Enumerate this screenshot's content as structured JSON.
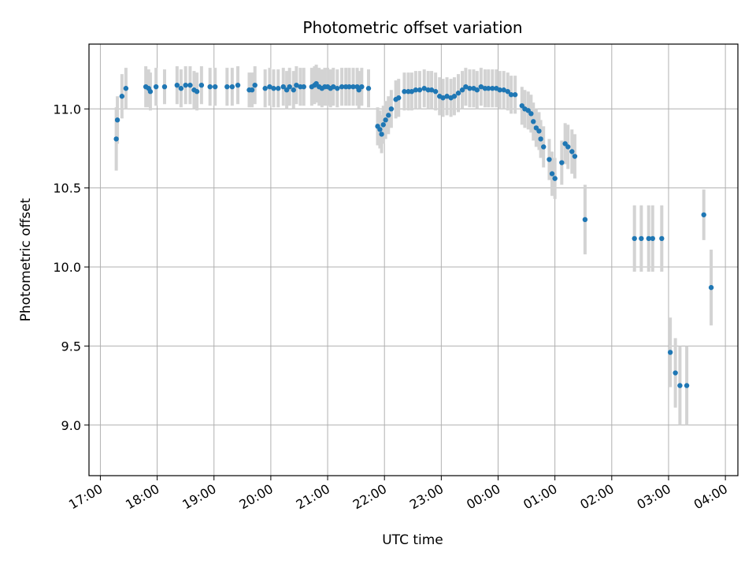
{
  "chart_data": {
    "type": "scatter",
    "title": "Photometric offset variation",
    "xlabel": "UTC time",
    "ylabel": "Photometric offset",
    "x_tick_labels": [
      "17:00",
      "18:00",
      "19:00",
      "20:00",
      "21:00",
      "22:00",
      "23:00",
      "00:00",
      "01:00",
      "02:00",
      "03:00",
      "04:00"
    ],
    "x_tick_hours": [
      17,
      18,
      19,
      20,
      21,
      22,
      23,
      24,
      25,
      26,
      27,
      28
    ],
    "y_ticks": [
      9.0,
      9.5,
      10.0,
      10.5,
      11.0
    ],
    "y_tick_labels": [
      "9.0",
      "9.5",
      "10.0",
      "10.5",
      "11.0"
    ],
    "xlim_hours": [
      16.8,
      28.22
    ],
    "ylim": [
      8.68,
      11.41
    ],
    "grid": true,
    "colors": {
      "marker": "#1f77b4",
      "errorbar": "#d3d3d3",
      "grid": "#b0b0b0"
    },
    "series": [
      {
        "points": [
          [
            17.28,
            10.81,
            0.2
          ],
          [
            17.3,
            10.93,
            0.15
          ],
          [
            17.38,
            11.08,
            0.14
          ],
          [
            17.45,
            11.13,
            0.13
          ],
          [
            17.8,
            11.14,
            0.13
          ],
          [
            17.85,
            11.13,
            0.12
          ],
          [
            17.88,
            11.11,
            0.12
          ],
          [
            17.98,
            11.14,
            0.12
          ],
          [
            18.13,
            11.14,
            0.11
          ],
          [
            18.35,
            11.15,
            0.12
          ],
          [
            18.42,
            11.13,
            0.12
          ],
          [
            18.5,
            11.15,
            0.12
          ],
          [
            18.58,
            11.15,
            0.12
          ],
          [
            18.65,
            11.12,
            0.12
          ],
          [
            18.7,
            11.11,
            0.12
          ],
          [
            18.78,
            11.15,
            0.12
          ],
          [
            18.93,
            11.14,
            0.12
          ],
          [
            19.02,
            11.14,
            0.12
          ],
          [
            19.23,
            11.14,
            0.12
          ],
          [
            19.32,
            11.14,
            0.12
          ],
          [
            19.42,
            11.15,
            0.12
          ],
          [
            19.62,
            11.12,
            0.11
          ],
          [
            19.67,
            11.12,
            0.11
          ],
          [
            19.72,
            11.15,
            0.12
          ],
          [
            19.9,
            11.13,
            0.12
          ],
          [
            19.98,
            11.14,
            0.12
          ],
          [
            20.05,
            11.13,
            0.12
          ],
          [
            20.13,
            11.13,
            0.12
          ],
          [
            20.22,
            11.14,
            0.12
          ],
          [
            20.28,
            11.12,
            0.12
          ],
          [
            20.33,
            11.14,
            0.12
          ],
          [
            20.4,
            11.12,
            0.12
          ],
          [
            20.45,
            11.15,
            0.12
          ],
          [
            20.52,
            11.14,
            0.12
          ],
          [
            20.58,
            11.14,
            0.12
          ],
          [
            20.72,
            11.14,
            0.12
          ],
          [
            20.77,
            11.15,
            0.12
          ],
          [
            20.8,
            11.16,
            0.12
          ],
          [
            20.85,
            11.14,
            0.12
          ],
          [
            20.9,
            11.13,
            0.12
          ],
          [
            20.95,
            11.14,
            0.12
          ],
          [
            21.0,
            11.14,
            0.12
          ],
          [
            21.05,
            11.13,
            0.12
          ],
          [
            21.1,
            11.14,
            0.12
          ],
          [
            21.17,
            11.13,
            0.12
          ],
          [
            21.25,
            11.14,
            0.12
          ],
          [
            21.32,
            11.14,
            0.12
          ],
          [
            21.38,
            11.14,
            0.12
          ],
          [
            21.45,
            11.14,
            0.12
          ],
          [
            21.52,
            11.14,
            0.12
          ],
          [
            21.55,
            11.12,
            0.12
          ],
          [
            21.6,
            11.14,
            0.12
          ],
          [
            21.72,
            11.13,
            0.12
          ],
          [
            21.88,
            10.89,
            0.12
          ],
          [
            21.92,
            10.87,
            0.12
          ],
          [
            21.95,
            10.84,
            0.12
          ],
          [
            21.98,
            10.9,
            0.12
          ],
          [
            22.02,
            10.93,
            0.12
          ],
          [
            22.07,
            10.96,
            0.12
          ],
          [
            22.12,
            11.0,
            0.12
          ],
          [
            22.2,
            11.06,
            0.12
          ],
          [
            22.25,
            11.07,
            0.12
          ],
          [
            22.35,
            11.11,
            0.12
          ],
          [
            22.42,
            11.11,
            0.12
          ],
          [
            22.48,
            11.11,
            0.12
          ],
          [
            22.55,
            11.12,
            0.12
          ],
          [
            22.62,
            11.12,
            0.12
          ],
          [
            22.7,
            11.13,
            0.12
          ],
          [
            22.77,
            11.12,
            0.12
          ],
          [
            22.83,
            11.12,
            0.12
          ],
          [
            22.9,
            11.11,
            0.12
          ],
          [
            22.97,
            11.08,
            0.12
          ],
          [
            23.03,
            11.07,
            0.12
          ],
          [
            23.1,
            11.08,
            0.12
          ],
          [
            23.17,
            11.07,
            0.12
          ],
          [
            23.23,
            11.08,
            0.12
          ],
          [
            23.3,
            11.1,
            0.12
          ],
          [
            23.37,
            11.12,
            0.12
          ],
          [
            23.43,
            11.14,
            0.12
          ],
          [
            23.5,
            11.13,
            0.12
          ],
          [
            23.57,
            11.13,
            0.12
          ],
          [
            23.63,
            11.12,
            0.12
          ],
          [
            23.7,
            11.14,
            0.12
          ],
          [
            23.77,
            11.13,
            0.12
          ],
          [
            23.83,
            11.13,
            0.12
          ],
          [
            23.9,
            11.13,
            0.12
          ],
          [
            23.97,
            11.13,
            0.12
          ],
          [
            24.03,
            11.12,
            0.12
          ],
          [
            24.1,
            11.12,
            0.12
          ],
          [
            24.17,
            11.11,
            0.12
          ],
          [
            24.23,
            11.09,
            0.12
          ],
          [
            24.3,
            11.09,
            0.12
          ],
          [
            24.42,
            11.02,
            0.12
          ],
          [
            24.47,
            11.0,
            0.12
          ],
          [
            24.53,
            10.99,
            0.12
          ],
          [
            24.58,
            10.97,
            0.12
          ],
          [
            24.62,
            10.92,
            0.12
          ],
          [
            24.67,
            10.88,
            0.12
          ],
          [
            24.72,
            10.86,
            0.12
          ],
          [
            24.75,
            10.81,
            0.12
          ],
          [
            24.8,
            10.76,
            0.13
          ],
          [
            24.9,
            10.68,
            0.13
          ],
          [
            24.95,
            10.59,
            0.14
          ],
          [
            25.0,
            10.56,
            0.13
          ],
          [
            25.12,
            10.66,
            0.14
          ],
          [
            25.18,
            10.78,
            0.13
          ],
          [
            25.23,
            10.76,
            0.14
          ],
          [
            25.3,
            10.73,
            0.14
          ],
          [
            25.35,
            10.7,
            0.14
          ],
          [
            25.53,
            10.3,
            0.22
          ],
          [
            26.4,
            10.18,
            0.21
          ],
          [
            26.52,
            10.18,
            0.21
          ],
          [
            26.65,
            10.18,
            0.21
          ],
          [
            26.72,
            10.18,
            0.21
          ],
          [
            26.88,
            10.18,
            0.21
          ],
          [
            27.03,
            9.46,
            0.22
          ],
          [
            27.12,
            9.33,
            0.22
          ],
          [
            27.2,
            9.25,
            0.25
          ],
          [
            27.32,
            9.25,
            0.25
          ],
          [
            27.62,
            10.33,
            0.16
          ],
          [
            27.75,
            9.87,
            0.24
          ]
        ]
      }
    ]
  }
}
